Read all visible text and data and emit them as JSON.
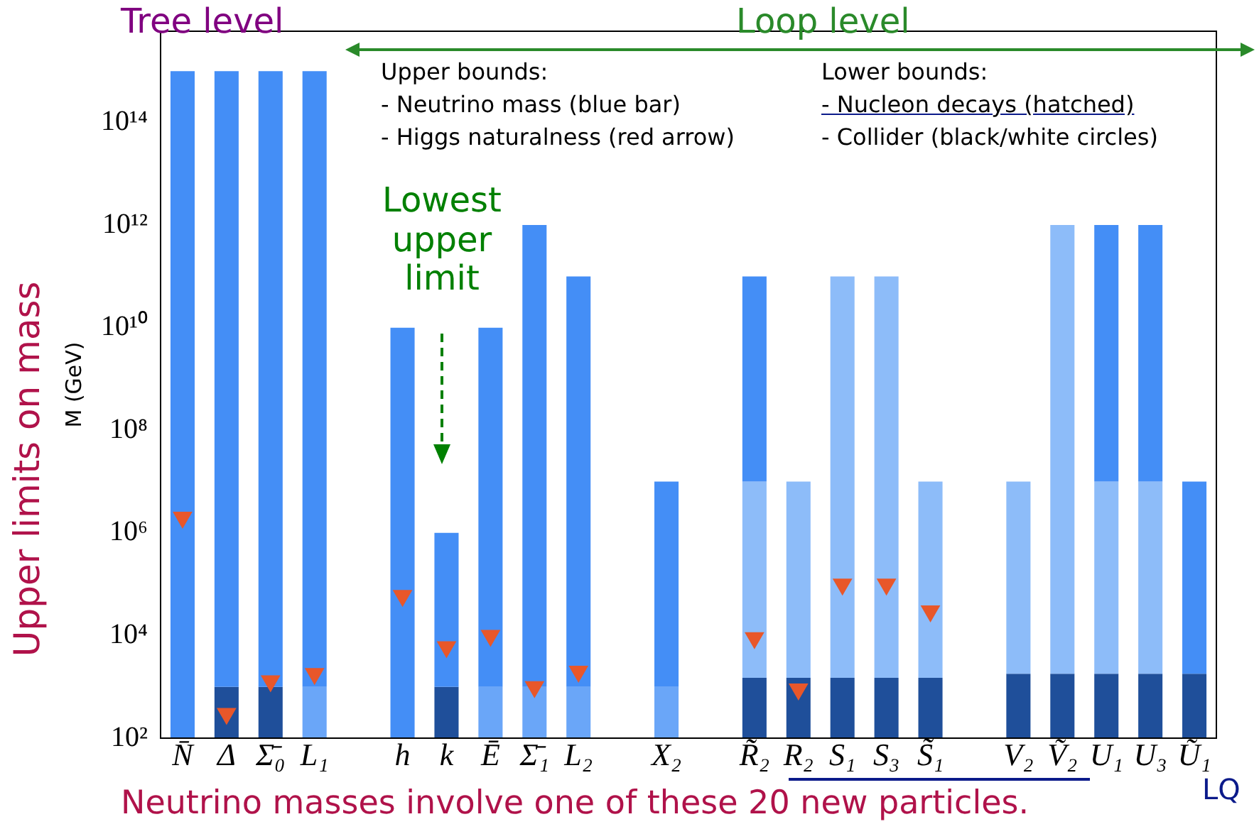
{
  "chart_data": {
    "type": "bar",
    "ylabel": "M (GeV)",
    "categories": [
      "N̄",
      "Δ",
      "Σ̄₀",
      "L₁",
      null,
      "h",
      "k",
      "Ē",
      "Σ̄₁",
      "L₂",
      null,
      "X₂",
      null,
      "R̃₂",
      "R₂",
      "S₁",
      "S₃",
      "S̃₁",
      null,
      "V₂",
      "Ṽ₂",
      "U₁",
      "U₃",
      "Ũ₁"
    ],
    "series": [
      {
        "colors": [
          null,
          "#1f4f9a",
          "#1f4f9a",
          "#6aa6f8",
          null,
          null,
          "#1f4f9a",
          "#6aa6f8",
          "#6aa6f8",
          "#6aa6f8",
          null,
          "#6aa6f8",
          null,
          "#1f4f9a",
          "#1f4f9a",
          "#1f4f9a",
          "#1f4f9a",
          "#1f4f9a",
          null,
          "#1f4f9a",
          "#1f4f9a",
          "#1f4f9a",
          "#1f4f9a",
          "#1f4f9a"
        ],
        "values": [
          null,
          1000,
          1000,
          1000,
          null,
          null,
          1000,
          1000,
          1000,
          1000,
          null,
          1000,
          null,
          1500,
          1500,
          1500,
          1500,
          1500,
          null,
          1800,
          1800,
          1800,
          1800,
          1800
        ]
      },
      {
        "color": "#8dbcf9",
        "values": [
          null,
          null,
          null,
          null,
          null,
          null,
          null,
          null,
          null,
          null,
          null,
          null,
          null,
          9998500,
          9998500,
          99999998500,
          99999998500,
          9998500,
          null,
          9998200,
          999999998200,
          9998200,
          9998200,
          null
        ]
      },
      {
        "color": "#448ef6",
        "values": [
          1000000000000000.0,
          999999999999000,
          999999999999000,
          999999999999000,
          null,
          10000000000.0,
          999000,
          9999999000,
          999999999000,
          99999999000,
          null,
          9999000,
          null,
          99990000000,
          null,
          null,
          null,
          null,
          null,
          null,
          null,
          999990000000,
          999990000000,
          9998200
        ]
      },
      {
        "type": "scatter",
        "color": "#e8572a",
        "marker": "triangle",
        "values": [
          2000000.0,
          300,
          1300,
          1800,
          null,
          60000.0,
          6000,
          10000.0,
          1000,
          2000,
          null,
          null,
          null,
          9000,
          900,
          100000.0,
          100000.0,
          30000.0,
          null,
          null,
          null,
          null,
          null,
          null
        ]
      }
    ],
    "stacked": true,
    "log": true,
    "ylim": [
      100,
      6000000000000000.0
    ],
    "yticks": [
      {
        "value": 100,
        "label": "10²"
      },
      {
        "value": 10000.0,
        "label": "10⁴"
      },
      {
        "value": 1000000.0,
        "label": "10⁶"
      },
      {
        "value": 100000000.0,
        "label": "10⁸"
      },
      {
        "value": 10000000000.0,
        "label": "10¹⁰"
      },
      {
        "value": 1000000000000.0,
        "label": "10¹²"
      },
      {
        "value": 100000000000000.0,
        "label": "10¹⁴"
      }
    ],
    "grid": false,
    "legend": false,
    "annotations": [
      "Tree level",
      "Loop level",
      "Upper bounds:",
      "- Neutrino mass (blue bar)",
      "- Higgs naturalness (red arrow)",
      "Lower bounds:",
      "- Nucleon decays (hatched)",
      "- Collider (black/white circles)",
      "Lowest upper limit",
      "LQ",
      "Upper limits on mass",
      "Neutrino masses involve one of these 20 new particles."
    ]
  }
}
